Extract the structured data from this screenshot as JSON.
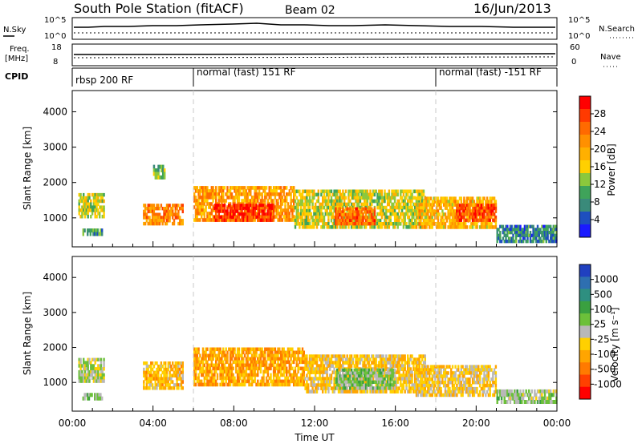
{
  "header": {
    "station": "South Pole Station (fitACF)",
    "beam": "Beam 02",
    "date": "16/Jun/2013"
  },
  "strip_labels": {
    "nsky": "N.Sky",
    "nsearch": "N.Search",
    "freq_line1": "Freq.",
    "freq_line2": "[MHz]",
    "nave": "Nave",
    "cpid": "CPID",
    "nsky_ticks": [
      "10^5",
      "10^0"
    ],
    "nsearch_ticks": [
      "10^5",
      "10^0"
    ],
    "freq_ticks": [
      "18",
      "8"
    ],
    "nave_ticks": [
      "60",
      "0"
    ]
  },
  "cpid_segments": [
    {
      "label": "rbsp 200 RF",
      "start_hour": 0
    },
    {
      "label": "normal (fast) 151 RF",
      "start_hour": 6
    },
    {
      "label": "normal (fast) -151 RF",
      "start_hour": 18
    }
  ],
  "colorbars": {
    "power": {
      "label": "Power [dB]",
      "ticks": [
        "4",
        "8",
        "12",
        "16",
        "20",
        "24",
        "28"
      ],
      "colors": [
        "#1a1aff",
        "#1e4fbf",
        "#3a8a7a",
        "#3fa35a",
        "#8cc83c",
        "#ffd000",
        "#ffb000",
        "#ff9000",
        "#ff6a00",
        "#ff3a00",
        "#ff0000"
      ]
    },
    "velocity": {
      "label": "Velocity [m s⁻¹]",
      "ticks": [
        "1000",
        "500",
        "100",
        "25",
        "-25",
        "-100",
        "-500",
        "-1000"
      ],
      "colors": [
        "#2040c0",
        "#2e6fb0",
        "#2e8f80",
        "#3aa040",
        "#6cc03a",
        "#b8b8b8",
        "#ffd000",
        "#ffa500",
        "#ff7a00",
        "#ff4000",
        "#ff0000"
      ]
    }
  },
  "chart_data": [
    {
      "type": "heatmap",
      "name": "power",
      "xlabel": "Time UT",
      "ylabel": "Slant Range [km]",
      "xlim": [
        0,
        24
      ],
      "ylim": [
        180,
        4600
      ],
      "x_ticks": [
        "00:00",
        "04:00",
        "08:00",
        "12:00",
        "16:00",
        "20:00",
        "00:00"
      ],
      "y_ticks": [
        1000,
        2000,
        3000,
        4000
      ],
      "colorbar": "Power [dB]",
      "regions": [
        {
          "t0": 0.3,
          "t1": 1.6,
          "r0": 1000,
          "r1": 1700,
          "value": 14
        },
        {
          "t0": 0.5,
          "t1": 1.5,
          "r0": 500,
          "r1": 700,
          "value": 8
        },
        {
          "t0": 3.5,
          "t1": 5.5,
          "r0": 800,
          "r1": 1400,
          "value": 22
        },
        {
          "t0": 4.0,
          "t1": 4.6,
          "r0": 2100,
          "r1": 2500,
          "value": 10
        },
        {
          "t0": 6.0,
          "t1": 11.0,
          "r0": 900,
          "r1": 1900,
          "value": 20
        },
        {
          "t0": 7.0,
          "t1": 10.0,
          "r0": 900,
          "r1": 1400,
          "value": 28
        },
        {
          "t0": 11.0,
          "t1": 17.5,
          "r0": 700,
          "r1": 1800,
          "value": 14
        },
        {
          "t0": 13.0,
          "t1": 15.0,
          "r0": 800,
          "r1": 1300,
          "value": 24
        },
        {
          "t0": 17.0,
          "t1": 21.0,
          "r0": 700,
          "r1": 1600,
          "value": 18
        },
        {
          "t0": 19.0,
          "t1": 21.0,
          "r0": 900,
          "r1": 1400,
          "value": 26
        },
        {
          "t0": 21.0,
          "t1": 24.0,
          "r0": 300,
          "r1": 800,
          "value": 6
        }
      ]
    },
    {
      "type": "heatmap",
      "name": "velocity",
      "xlabel": "Time UT",
      "ylabel": "Slant Range [km]",
      "xlim": [
        0,
        24
      ],
      "ylim": [
        180,
        4600
      ],
      "x_ticks": [
        "00:00",
        "04:00",
        "08:00",
        "12:00",
        "16:00",
        "20:00",
        "00:00"
      ],
      "y_ticks": [
        1000,
        2000,
        3000,
        4000
      ],
      "colorbar": "Velocity [m s⁻¹]",
      "regions": [
        {
          "t0": 0.3,
          "t1": 1.6,
          "r0": 1000,
          "r1": 1700,
          "value": 50
        },
        {
          "t0": 0.5,
          "t1": 1.5,
          "r0": 500,
          "r1": 700,
          "value": 200
        },
        {
          "t0": 3.5,
          "t1": 5.5,
          "r0": 800,
          "r1": 1600,
          "value": -300
        },
        {
          "t0": 6.0,
          "t1": 11.5,
          "r0": 900,
          "r1": 2000,
          "value": -400
        },
        {
          "t0": 11.5,
          "t1": 17.5,
          "r0": 700,
          "r1": 1800,
          "value": -250
        },
        {
          "t0": 13.0,
          "t1": 16.0,
          "r0": 800,
          "r1": 1400,
          "value": 150
        },
        {
          "t0": 17.0,
          "t1": 21.0,
          "r0": 600,
          "r1": 1500,
          "value": -200
        },
        {
          "t0": 21.0,
          "t1": 24.0,
          "r0": 400,
          "r1": 800,
          "value": 100
        }
      ]
    }
  ]
}
